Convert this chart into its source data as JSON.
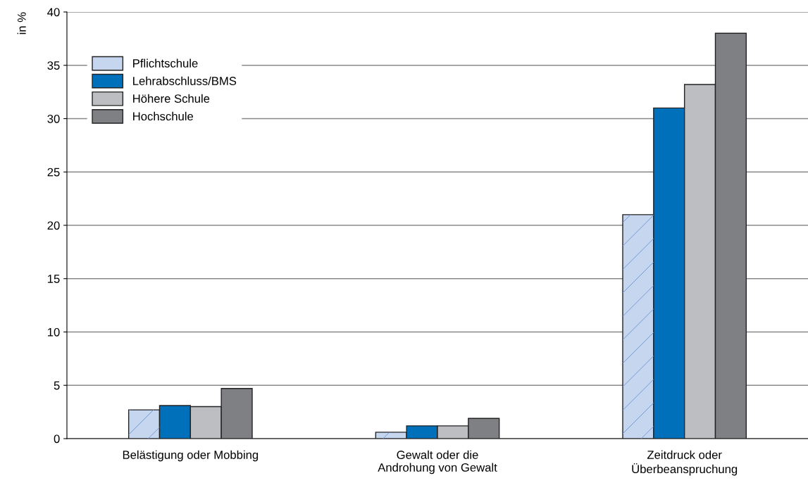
{
  "chart_data": {
    "type": "bar",
    "ylabel": "in %",
    "categories": [
      "Belästigung oder Mobbing",
      "Gewalt oder die\nAndrohung von Gewalt",
      "Zeitdruck oder\nÜberbeanspruchung"
    ],
    "series": [
      {
        "name": "Pflichtschule",
        "color": "#c6d6ef",
        "values": [
          2.7,
          0.6,
          21
        ]
      },
      {
        "name": "Lehrabschluss/BMS",
        "color": "#0070bb",
        "values": [
          3.1,
          1.2,
          31
        ]
      },
      {
        "name": "Höhere Schule",
        "color": "#bdbec2",
        "values": [
          3.0,
          1.2,
          33.2
        ]
      },
      {
        "name": "Hochschule",
        "color": "#7f8084",
        "values": [
          4.7,
          1.9,
          38
        ]
      }
    ],
    "ylim": [
      0,
      40
    ],
    "yticks": [
      0,
      5,
      10,
      15,
      20,
      25,
      30,
      35,
      40
    ],
    "grid": "y",
    "legend": "top left"
  }
}
